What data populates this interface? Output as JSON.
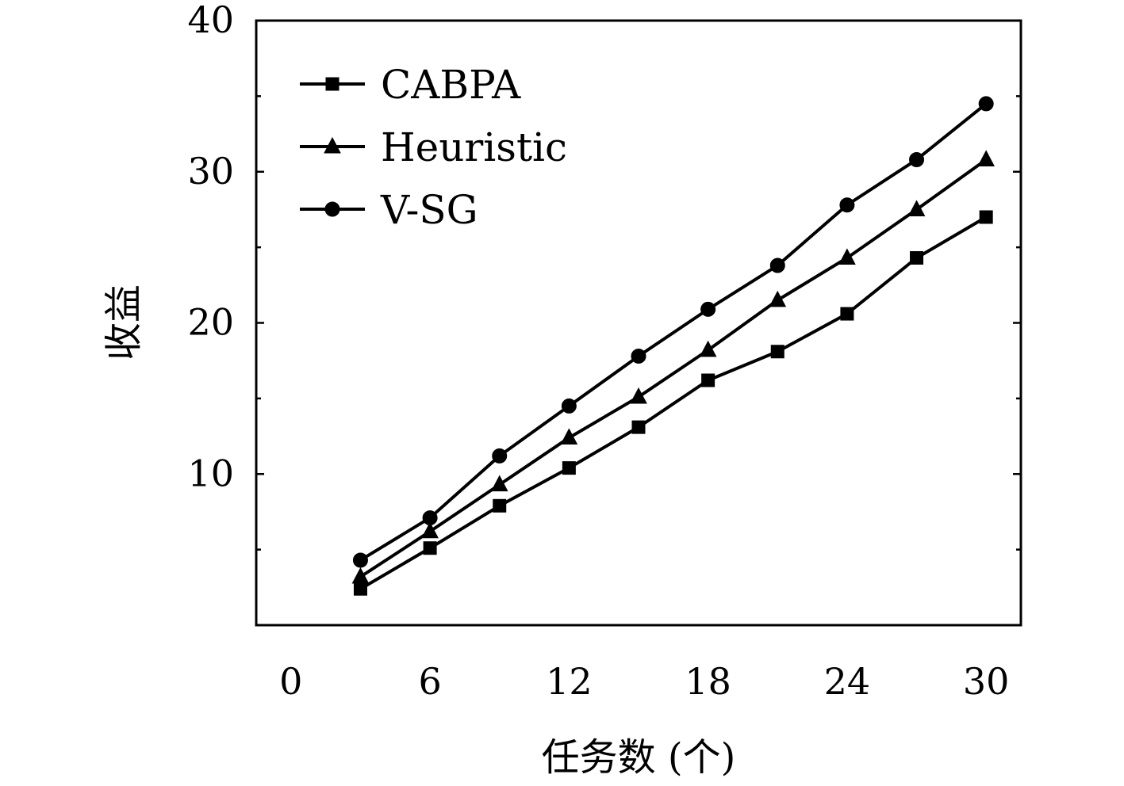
{
  "chart_data": {
    "type": "line",
    "xlabel": "任务数 (个)",
    "ylabel": "收益",
    "xlim": [
      -1.5,
      31.5
    ],
    "ylim": [
      0,
      40
    ],
    "xticks": [
      0,
      6,
      12,
      18,
      24,
      30
    ],
    "yticks": [
      10,
      20,
      30,
      40
    ],
    "x_tick_labels": [
      "0",
      "6",
      "12",
      "18",
      "24",
      "30"
    ],
    "y_tick_labels": [
      "10",
      "20",
      "30",
      "40"
    ],
    "legend_position": "top-left",
    "grid": false,
    "x": [
      3,
      6,
      9,
      12,
      15,
      18,
      21,
      24,
      27,
      30
    ],
    "series": [
      {
        "name": "CABPA",
        "marker": "square",
        "color": "#000000",
        "values": [
          2.4,
          5.1,
          7.9,
          10.4,
          13.1,
          16.2,
          18.1,
          20.6,
          24.3,
          27.0
        ]
      },
      {
        "name": "Heuristic",
        "marker": "triangle",
        "color": "#000000",
        "values": [
          3.2,
          6.2,
          9.3,
          12.4,
          15.1,
          18.2,
          21.5,
          24.3,
          27.5,
          30.8
        ]
      },
      {
        "name": "V-SG",
        "marker": "circle",
        "color": "#000000",
        "values": [
          4.3,
          7.1,
          11.2,
          14.5,
          17.8,
          20.9,
          23.8,
          27.8,
          30.8,
          34.5
        ]
      }
    ]
  }
}
